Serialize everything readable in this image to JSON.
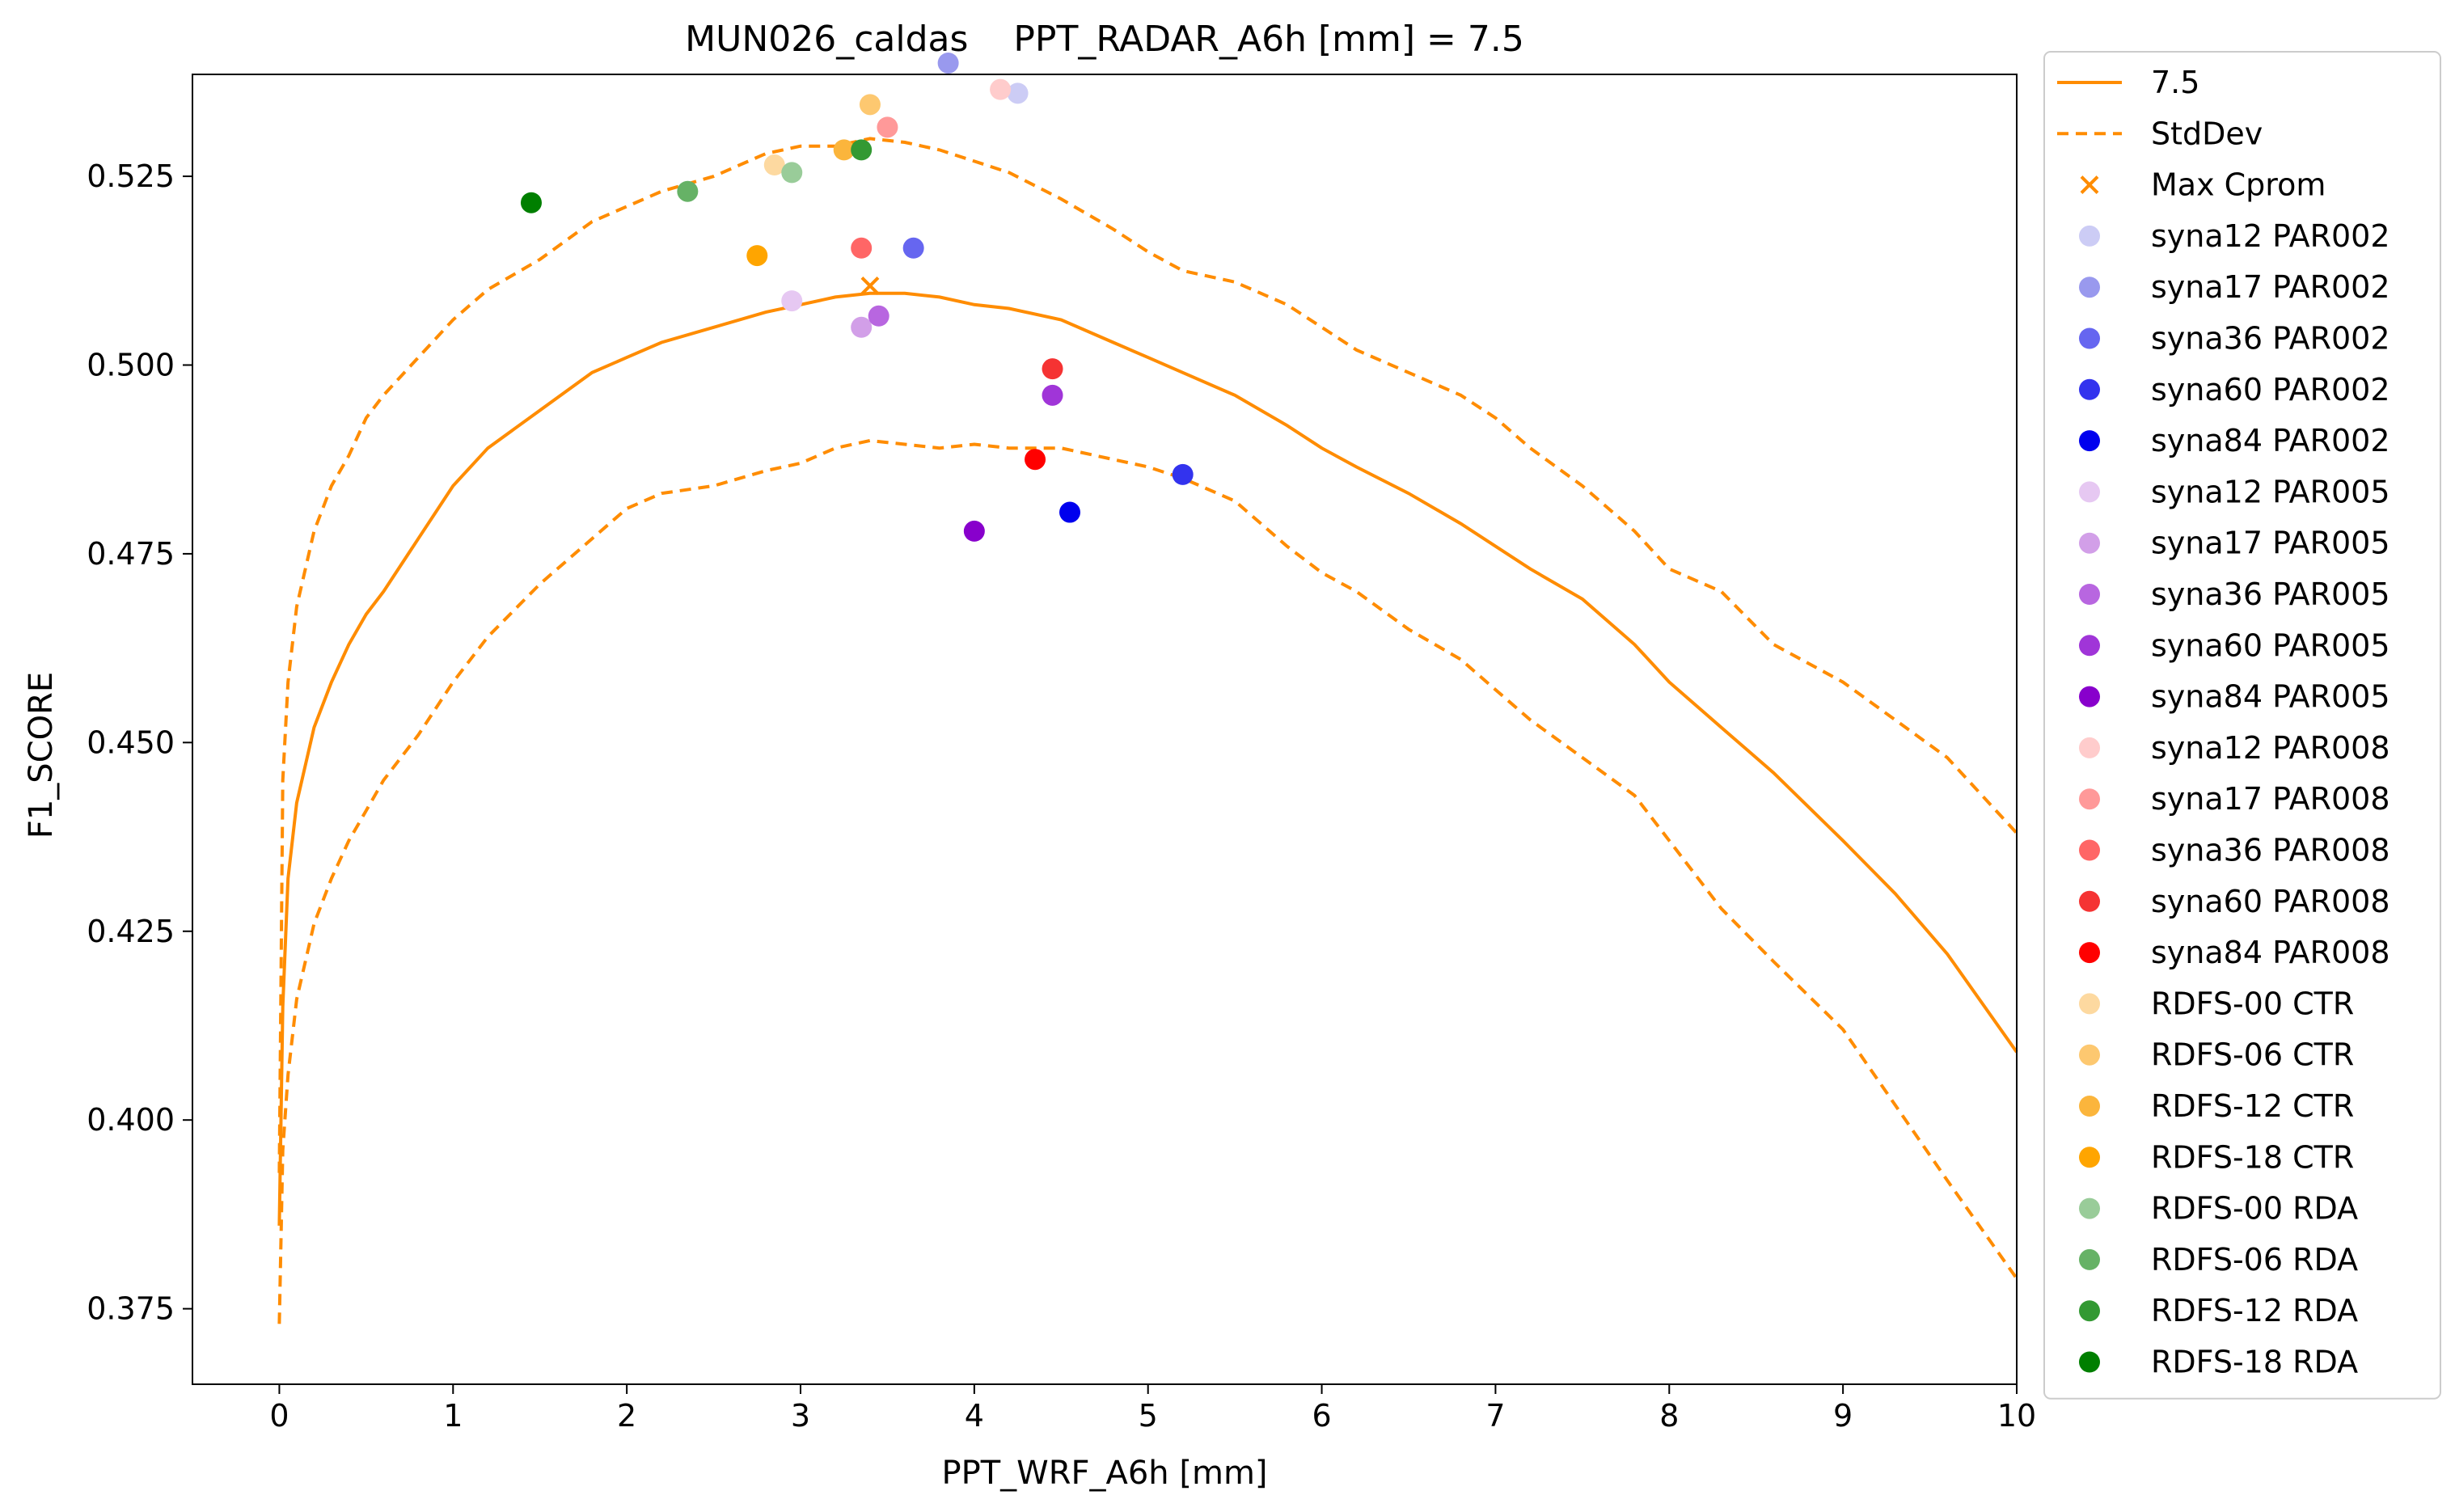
{
  "chart_data": {
    "type": "scatter",
    "title": "MUN026_caldas    PPT_RADAR_A6h [mm] = 7.5",
    "xlabel": "PPT_WRF_A6h [mm]",
    "ylabel": "F1_SCORE",
    "xlim": [
      -0.5,
      10
    ],
    "ylim": [
      0.365,
      0.5385
    ],
    "xticks": [
      0,
      1,
      2,
      3,
      4,
      5,
      6,
      7,
      8,
      9,
      10
    ],
    "yticks": [
      0.375,
      0.4,
      0.425,
      0.45,
      0.475,
      0.5,
      0.525
    ],
    "xtick_labels": [
      "0",
      "1",
      "2",
      "3",
      "4",
      "5",
      "6",
      "7",
      "8",
      "9",
      "10"
    ],
    "ytick_labels": [
      "0.375",
      "0.400",
      "0.425",
      "0.450",
      "0.475",
      "0.500",
      "0.525"
    ],
    "grid": false,
    "legend_position": "outside-right",
    "curves": [
      {
        "name": "7.5",
        "style": "solid",
        "color": "#ff8c00",
        "x": [
          0,
          0.02,
          0.05,
          0.1,
          0.2,
          0.3,
          0.4,
          0.5,
          0.6,
          0.8,
          1.0,
          1.2,
          1.5,
          1.8,
          2.0,
          2.2,
          2.5,
          2.8,
          3.0,
          3.2,
          3.4,
          3.6,
          3.8,
          4.0,
          4.2,
          4.5,
          4.8,
          5.0,
          5.2,
          5.5,
          5.8,
          6.0,
          6.2,
          6.5,
          6.8,
          7.0,
          7.2,
          7.5,
          7.8,
          8.0,
          8.3,
          8.6,
          9.0,
          9.3,
          9.6,
          10.0
        ],
        "y": [
          0.386,
          0.415,
          0.432,
          0.442,
          0.452,
          0.458,
          0.463,
          0.467,
          0.47,
          0.477,
          0.484,
          0.489,
          0.494,
          0.499,
          0.501,
          0.503,
          0.505,
          0.507,
          0.508,
          0.509,
          0.5095,
          0.5095,
          0.509,
          0.508,
          0.5075,
          0.506,
          0.503,
          0.501,
          0.499,
          0.496,
          0.492,
          0.489,
          0.4865,
          0.483,
          0.479,
          0.476,
          0.473,
          0.469,
          0.463,
          0.458,
          0.452,
          0.446,
          0.437,
          0.43,
          0.422,
          0.409
        ]
      },
      {
        "name": "StdDev",
        "style": "dashed",
        "color": "#ff8c00",
        "x": [
          0,
          0.02,
          0.05,
          0.1,
          0.2,
          0.3,
          0.4,
          0.5,
          0.6,
          0.8,
          1.0,
          1.2,
          1.5,
          1.8,
          2.0,
          2.2,
          2.5,
          2.8,
          3.0,
          3.2,
          3.4,
          3.6,
          3.8,
          4.0,
          4.2,
          4.5,
          4.8,
          5.0,
          5.2,
          5.5,
          5.8,
          6.0,
          6.2,
          6.5,
          6.8,
          7.0,
          7.2,
          7.5,
          7.8,
          8.0,
          8.3,
          8.6,
          9.0,
          9.3,
          9.6,
          10.0
        ],
        "y": [
          0.393,
          0.445,
          0.458,
          0.468,
          0.478,
          0.484,
          0.488,
          0.493,
          0.496,
          0.501,
          0.506,
          0.51,
          0.514,
          0.519,
          0.521,
          0.523,
          0.525,
          0.528,
          0.529,
          0.529,
          0.53,
          0.5295,
          0.5285,
          0.527,
          0.5255,
          0.522,
          0.518,
          0.515,
          0.5125,
          0.511,
          0.508,
          0.505,
          0.502,
          0.499,
          0.496,
          0.493,
          0.489,
          0.484,
          0.478,
          0.473,
          0.47,
          0.463,
          0.458,
          0.453,
          0.448,
          0.438
        ]
      },
      {
        "name": "",
        "style": "dashed",
        "color": "#ff8c00",
        "x": [
          0,
          0.02,
          0.05,
          0.1,
          0.2,
          0.3,
          0.4,
          0.5,
          0.6,
          0.8,
          1.0,
          1.2,
          1.5,
          1.8,
          2.0,
          2.2,
          2.5,
          2.8,
          3.0,
          3.2,
          3.4,
          3.6,
          3.8,
          4.0,
          4.2,
          4.5,
          4.8,
          5.0,
          5.2,
          5.5,
          5.8,
          6.0,
          6.2,
          6.5,
          6.8,
          7.0,
          7.2,
          7.5,
          7.8,
          8.0,
          8.3,
          8.6,
          9.0,
          9.3,
          9.6,
          10.0
        ],
        "y": [
          0.373,
          0.396,
          0.406,
          0.416,
          0.426,
          0.432,
          0.437,
          0.441,
          0.445,
          0.451,
          0.458,
          0.464,
          0.471,
          0.477,
          0.481,
          0.483,
          0.484,
          0.486,
          0.487,
          0.489,
          0.49,
          0.4895,
          0.489,
          0.4895,
          0.489,
          0.489,
          0.4875,
          0.4865,
          0.485,
          0.482,
          0.476,
          0.4725,
          0.47,
          0.465,
          0.461,
          0.457,
          0.453,
          0.448,
          0.443,
          0.437,
          0.428,
          0.421,
          0.412,
          0.402,
          0.392,
          0.379
        ]
      }
    ],
    "max_marker": {
      "name": "Max Cprom",
      "x": 3.4,
      "y": 0.5105,
      "color": "#ff8c00"
    },
    "series": [
      {
        "name": "syna12 PAR002",
        "color": "#ccccf5",
        "x": 4.25,
        "y": 0.536
      },
      {
        "name": "syna17 PAR002",
        "color": "#9999ee",
        "x": 3.85,
        "y": 0.54
      },
      {
        "name": "syna36 PAR002",
        "color": "#6666f0",
        "x": 3.65,
        "y": 0.5155
      },
      {
        "name": "syna60 PAR002",
        "color": "#3333ee",
        "x": 5.2,
        "y": 0.4855
      },
      {
        "name": "syna84 PAR002",
        "color": "#0000ee",
        "x": 4.55,
        "y": 0.4805
      },
      {
        "name": "syna12 PAR005",
        "color": "#e6c8f2",
        "x": 2.95,
        "y": 0.5085
      },
      {
        "name": "syna17 PAR005",
        "color": "#d29fe8",
        "x": 3.35,
        "y": 0.505
      },
      {
        "name": "syna36 PAR005",
        "color": "#b866e0",
        "x": 3.45,
        "y": 0.5065
      },
      {
        "name": "syna60 PAR005",
        "color": "#a035d8",
        "x": 4.45,
        "y": 0.496
      },
      {
        "name": "syna84 PAR005",
        "color": "#8800cc",
        "x": 4.0,
        "y": 0.478
      },
      {
        "name": "syna12 PAR008",
        "color": "#ffcccc",
        "x": 4.15,
        "y": 0.5365
      },
      {
        "name": "syna17 PAR008",
        "color": "#ff9999",
        "x": 3.5,
        "y": 0.5315
      },
      {
        "name": "syna36 PAR008",
        "color": "#ff6666",
        "x": 3.35,
        "y": 0.5155
      },
      {
        "name": "syna60 PAR008",
        "color": "#f53333",
        "x": 4.45,
        "y": 0.4995
      },
      {
        "name": "syna84 PAR008",
        "color": "#ff0000",
        "x": 4.35,
        "y": 0.4875
      },
      {
        "name": "RDFS-00 CTR",
        "color": "#fdd9a0",
        "x": 2.85,
        "y": 0.5265
      },
      {
        "name": "RDFS-06 CTR",
        "color": "#fdc870",
        "x": 3.4,
        "y": 0.5345
      },
      {
        "name": "RDFS-12 CTR",
        "color": "#fbb53c",
        "x": 3.25,
        "y": 0.5285
      },
      {
        "name": "RDFS-18 CTR",
        "color": "#ffa500",
        "x": 2.75,
        "y": 0.5145
      },
      {
        "name": "RDFS-00 RDA",
        "color": "#99cc99",
        "x": 2.95,
        "y": 0.5255
      },
      {
        "name": "RDFS-06 RDA",
        "color": "#66b266",
        "x": 2.35,
        "y": 0.523
      },
      {
        "name": "RDFS-12 RDA",
        "color": "#339933",
        "x": 3.35,
        "y": 0.5285
      },
      {
        "name": "RDFS-18 RDA",
        "color": "#007f00",
        "x": 1.45,
        "y": 0.5215
      }
    ]
  }
}
